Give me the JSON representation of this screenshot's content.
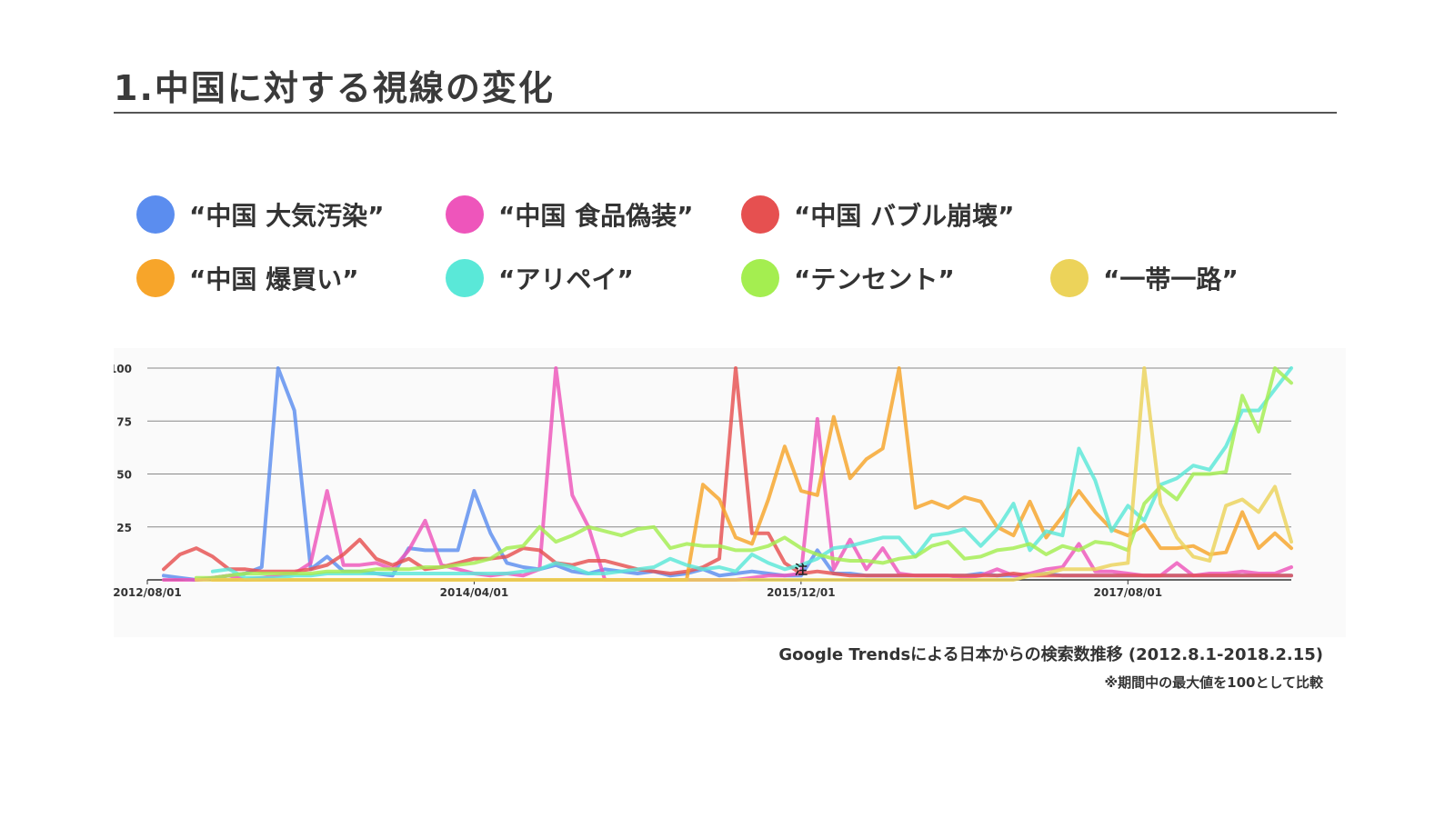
{
  "title": "1.中国に対する視線の変化",
  "legend": [
    {
      "label": "“中国 大気汚染”",
      "color": "#5b8def"
    },
    {
      "label": "“中国 食品偽装”",
      "color": "#ee55bb"
    },
    {
      "label": "“中国 バブル崩壊”",
      "color": "#e65050"
    },
    {
      "label": "“中国 爆買い”",
      "color": "#f7a52a"
    },
    {
      "label": "“アリペイ”",
      "color": "#5ae8d8"
    },
    {
      "label": "“テンセント”",
      "color": "#a4ee50"
    },
    {
      "label": "“一帯一路”",
      "color": "#ecd35a"
    }
  ],
  "source": "Google Trendsによる日本からの検索数推移 (2012.8.1-2018.2.15)",
  "note": "※期間中の最大値を100として比較",
  "annotation": "注",
  "chart_data": {
    "type": "line",
    "xlabel": "",
    "ylabel": "",
    "ylim": [
      0,
      100
    ],
    "yticks": [
      "100",
      "75",
      "50",
      "25"
    ],
    "grid": true,
    "x_tick_labels": [
      "2012/08/01",
      "2014/04/01",
      "2015/12/01",
      "2017/08/01"
    ],
    "x_tick_index": [
      0,
      20,
      40,
      60
    ],
    "series": [
      {
        "name": "“中国 大気汚染”",
        "color": "#5b8def",
        "values": [
          2,
          1,
          0,
          1,
          2,
          3,
          6,
          100,
          80,
          5,
          11,
          4,
          4,
          3,
          2,
          15,
          14,
          14,
          14,
          42,
          22,
          8,
          6,
          5,
          7,
          4,
          3,
          5,
          4,
          3,
          4,
          2,
          3,
          5,
          2,
          3,
          4,
          3,
          2,
          2,
          14,
          3,
          3,
          2,
          2,
          2,
          2,
          2,
          2,
          2,
          3,
          2,
          2,
          2,
          3,
          2,
          2,
          2,
          2,
          2,
          2,
          2,
          2,
          2,
          2,
          2,
          2,
          2,
          2,
          2
        ]
      },
      {
        "name": "“中国 食品偽装”",
        "color": "#ee55bb",
        "values": [
          0,
          0,
          0,
          1,
          2,
          0,
          1,
          2,
          3,
          8,
          42,
          7,
          7,
          8,
          5,
          14,
          28,
          7,
          5,
          3,
          2,
          3,
          2,
          5,
          100,
          40,
          25,
          0,
          0,
          0,
          0,
          0,
          0,
          0,
          0,
          0,
          1,
          2,
          2,
          3,
          76,
          5,
          19,
          5,
          15,
          3,
          2,
          2,
          2,
          1,
          2,
          5,
          2,
          3,
          5,
          6,
          17,
          4,
          4,
          3,
          2,
          2,
          8,
          2,
          3,
          3,
          4,
          3,
          3,
          6
        ]
      },
      {
        "name": "“中国 バブル崩壊”",
        "color": "#e65050",
        "values": [
          5,
          12,
          15,
          11,
          5,
          5,
          4,
          4,
          4,
          5,
          7,
          12,
          19,
          10,
          7,
          10,
          5,
          6,
          8,
          10,
          10,
          11,
          15,
          14,
          8,
          7,
          9,
          9,
          7,
          5,
          4,
          3,
          4,
          6,
          10,
          100,
          22,
          22,
          8,
          3,
          4,
          3,
          2,
          2,
          2,
          2,
          2,
          2,
          2,
          2,
          2,
          2,
          3,
          2,
          2,
          2,
          2,
          2,
          2,
          2,
          2,
          2,
          2,
          2,
          2,
          2,
          2,
          2,
          2,
          2
        ]
      },
      {
        "name": "“中国 爆買い”",
        "color": "#f7a52a",
        "values": [
          0,
          0,
          0,
          0,
          0,
          0,
          0,
          0,
          0,
          0,
          0,
          0,
          0,
          0,
          0,
          0,
          0,
          0,
          0,
          0,
          0,
          0,
          0,
          0,
          0,
          0,
          0,
          0,
          0,
          0,
          45,
          38,
          20,
          17,
          38,
          63,
          42,
          40,
          77,
          48,
          57,
          62,
          100,
          34,
          37,
          34,
          39,
          37,
          25,
          21,
          37,
          20,
          30,
          42,
          32,
          24,
          21,
          26,
          15,
          15,
          16,
          12,
          13,
          32,
          15,
          22,
          15
        ]
      },
      {
        "name": "“アリペイ”",
        "color": "#5ae8d8",
        "values": [
          4,
          5,
          1,
          1,
          1,
          2,
          2,
          3,
          3,
          3,
          3,
          3,
          3,
          3,
          3,
          3,
          3,
          3,
          3,
          4,
          5,
          8,
          6,
          3,
          3,
          4,
          5,
          6,
          10,
          7,
          5,
          6,
          4,
          12,
          8,
          5,
          7,
          10,
          15,
          16,
          18,
          20,
          20,
          11,
          21,
          22,
          24,
          16,
          24,
          36,
          14,
          23,
          21,
          62,
          47,
          23,
          35,
          28,
          45,
          48,
          54,
          52,
          63,
          80,
          80,
          90,
          100
        ]
      },
      {
        "name": "“テンセント”",
        "color": "#a4ee50",
        "values": [
          1,
          1,
          2,
          3,
          3,
          3,
          3,
          3,
          4,
          4,
          4,
          5,
          5,
          5,
          6,
          6,
          7,
          8,
          10,
          15,
          16,
          25,
          18,
          21,
          25,
          23,
          21,
          24,
          25,
          15,
          17,
          16,
          16,
          14,
          14,
          16,
          20,
          15,
          12,
          10,
          9,
          9,
          8,
          10,
          11,
          16,
          18,
          10,
          11,
          14,
          15,
          17,
          12,
          16,
          14,
          18,
          17,
          14,
          36,
          44,
          38,
          50,
          50,
          51,
          87,
          70,
          100,
          93
        ]
      },
      {
        "name": "“一帯一路”",
        "color": "#ecd35a",
        "values": [
          0,
          0,
          0,
          0,
          0,
          0,
          0,
          0,
          0,
          0,
          0,
          0,
          0,
          0,
          0,
          0,
          0,
          0,
          0,
          0,
          0,
          0,
          0,
          0,
          0,
          0,
          0,
          0,
          0,
          0,
          0,
          0,
          0,
          0,
          0,
          0,
          0,
          0,
          0,
          0,
          0,
          0,
          0,
          0,
          0,
          0,
          0,
          0,
          0,
          0,
          0,
          2,
          3,
          5,
          5,
          5,
          7,
          8,
          100,
          36,
          20,
          11,
          9,
          35,
          38,
          32,
          44,
          18
        ]
      }
    ]
  }
}
